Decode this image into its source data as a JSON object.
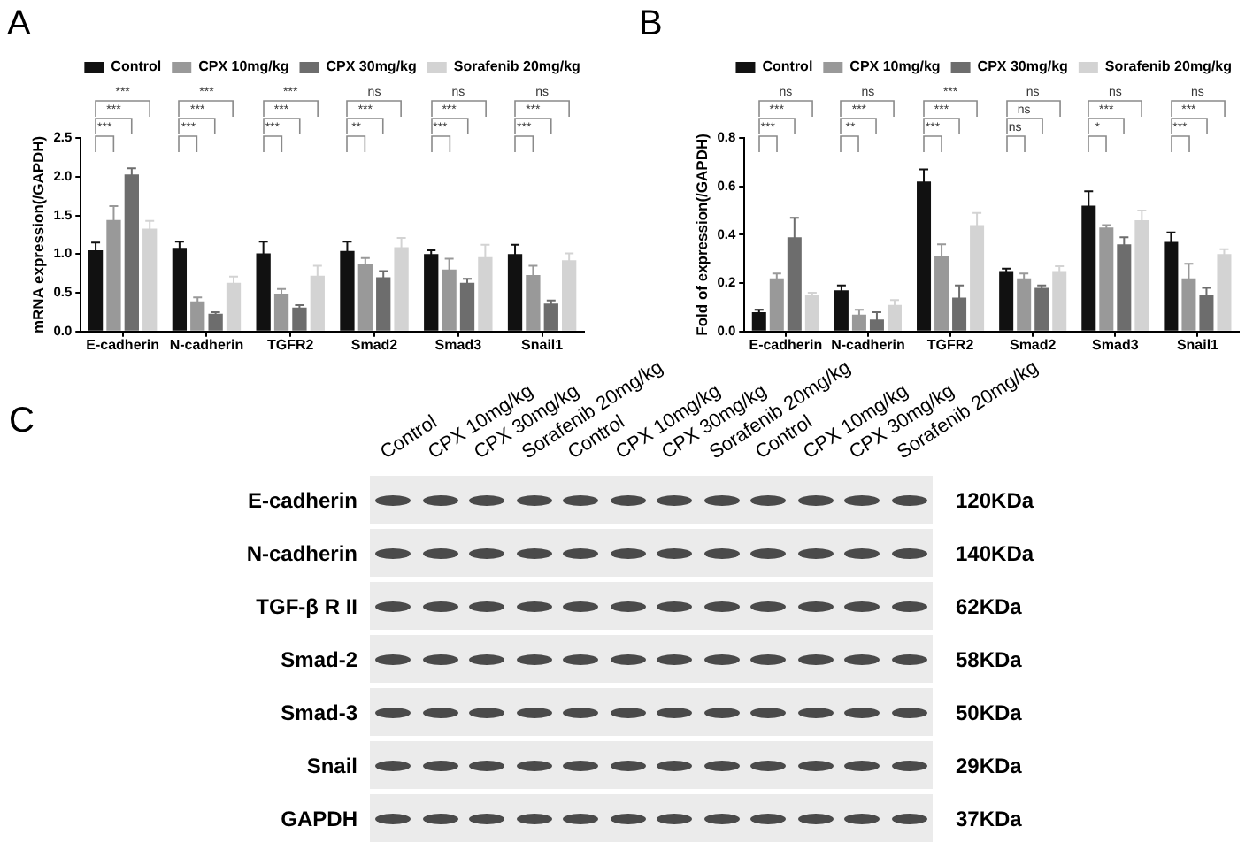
{
  "chart_data": [
    {
      "type": "bar",
      "title": "A",
      "ylabel": "mRNA expression(/GAPDH)",
      "categories": [
        "E-cadherin",
        "N-cadherin",
        "TGFR2",
        "Smad2",
        "Smad3",
        "Snail1"
      ],
      "series": [
        {
          "name": "Control",
          "color": "#111111",
          "values": [
            1.05,
            1.08,
            1.01,
            1.04,
            1.0,
            1.0
          ],
          "errors": [
            0.1,
            0.08,
            0.15,
            0.12,
            0.05,
            0.12
          ]
        },
        {
          "name": "CPX 10mg/kg",
          "color": "#999999",
          "values": [
            1.44,
            0.39,
            0.49,
            0.87,
            0.8,
            0.73
          ],
          "errors": [
            0.18,
            0.05,
            0.06,
            0.08,
            0.14,
            0.12
          ]
        },
        {
          "name": "CPX 30mg/kg",
          "color": "#6d6d6d",
          "values": [
            2.03,
            0.23,
            0.31,
            0.7,
            0.63,
            0.36
          ],
          "errors": [
            0.08,
            0.02,
            0.03,
            0.08,
            0.05,
            0.04
          ]
        },
        {
          "name": "Sorafenib 20mg/kg",
          "color": "#d3d3d3",
          "values": [
            1.33,
            0.63,
            0.72,
            1.09,
            0.96,
            0.92
          ],
          "errors": [
            0.1,
            0.08,
            0.13,
            0.12,
            0.16,
            0.09
          ]
        }
      ],
      "ylim": [
        0,
        2.5
      ],
      "yticks": [
        {
          "value": 0,
          "label": "0.0"
        },
        0.5,
        {
          "value": 1,
          "label": "1.0"
        },
        1.5,
        {
          "value": 2,
          "label": "2.0"
        },
        2.5
      ],
      "legend": "top",
      "annotations": [
        "***",
        "***",
        "***",
        "***",
        "***",
        "***",
        "***",
        "***",
        "***",
        "**",
        "***",
        "ns",
        "***",
        "***",
        "ns",
        "***",
        "***",
        "ns"
      ]
    },
    {
      "type": "bar",
      "title": "B",
      "ylabel": "Fold of expression(/GAPDH)",
      "categories": [
        "E-cadherin",
        "N-cadherin",
        "TGFR2",
        "Smad2",
        "Smad3",
        "Snail1"
      ],
      "series": [
        {
          "name": "Control",
          "color": "#111111",
          "values": [
            0.08,
            0.17,
            0.62,
            0.25,
            0.52,
            0.37
          ],
          "errors": [
            0.01,
            0.02,
            0.05,
            0.01,
            0.06,
            0.04
          ]
        },
        {
          "name": "CPX 10mg/kg",
          "color": "#999999",
          "values": [
            0.22,
            0.07,
            0.31,
            0.22,
            0.43,
            0.22
          ],
          "errors": [
            0.02,
            0.02,
            0.05,
            0.02,
            0.01,
            0.06
          ]
        },
        {
          "name": "CPX 30mg/kg",
          "color": "#6d6d6d",
          "values": [
            0.39,
            0.05,
            0.14,
            0.18,
            0.36,
            0.15
          ],
          "errors": [
            0.08,
            0.03,
            0.05,
            0.01,
            0.03,
            0.03
          ]
        },
        {
          "name": "Sorafenib 20mg/kg",
          "color": "#d3d3d3",
          "values": [
            0.15,
            0.11,
            0.44,
            0.25,
            0.46,
            0.32
          ],
          "errors": [
            0.01,
            0.02,
            0.05,
            0.02,
            0.04,
            0.02
          ]
        }
      ],
      "ylim": [
        0,
        0.8
      ],
      "yticks": [
        {
          "value": 0,
          "label": "0.0"
        },
        0.2,
        0.4,
        0.6,
        0.8
      ],
      "legend": "top",
      "annotations": [
        "***",
        "***",
        "ns",
        "**",
        "***",
        "ns",
        "***",
        "***",
        "***",
        "ns",
        "ns",
        "ns",
        "*",
        "***",
        "ns",
        "***",
        "***",
        "ns"
      ]
    },
    {
      "type": "other",
      "title": "C",
      "categories": [
        "Control",
        "CPX 10mg/kg",
        "CPX 30mg/kg",
        "Sorafenib 20mg/kg",
        "Control",
        "CPX 10mg/kg",
        "CPX 30mg/kg",
        "Sorafenib 20mg/kg",
        "Control",
        "CPX 10mg/kg",
        "CPX 30mg/kg",
        "Sorafenib 20mg/kg"
      ],
      "y_categories": [
        "E-cadherin",
        "N-cadherin",
        "TGF-β R II",
        "Smad-2",
        "Smad-3",
        "Snail",
        "GAPDH"
      ],
      "y2_categories": [
        "120KDa",
        "140KDa",
        "62KDa",
        "58KDa",
        "50KDa",
        "29KDa",
        "37KDa"
      ]
    }
  ]
}
